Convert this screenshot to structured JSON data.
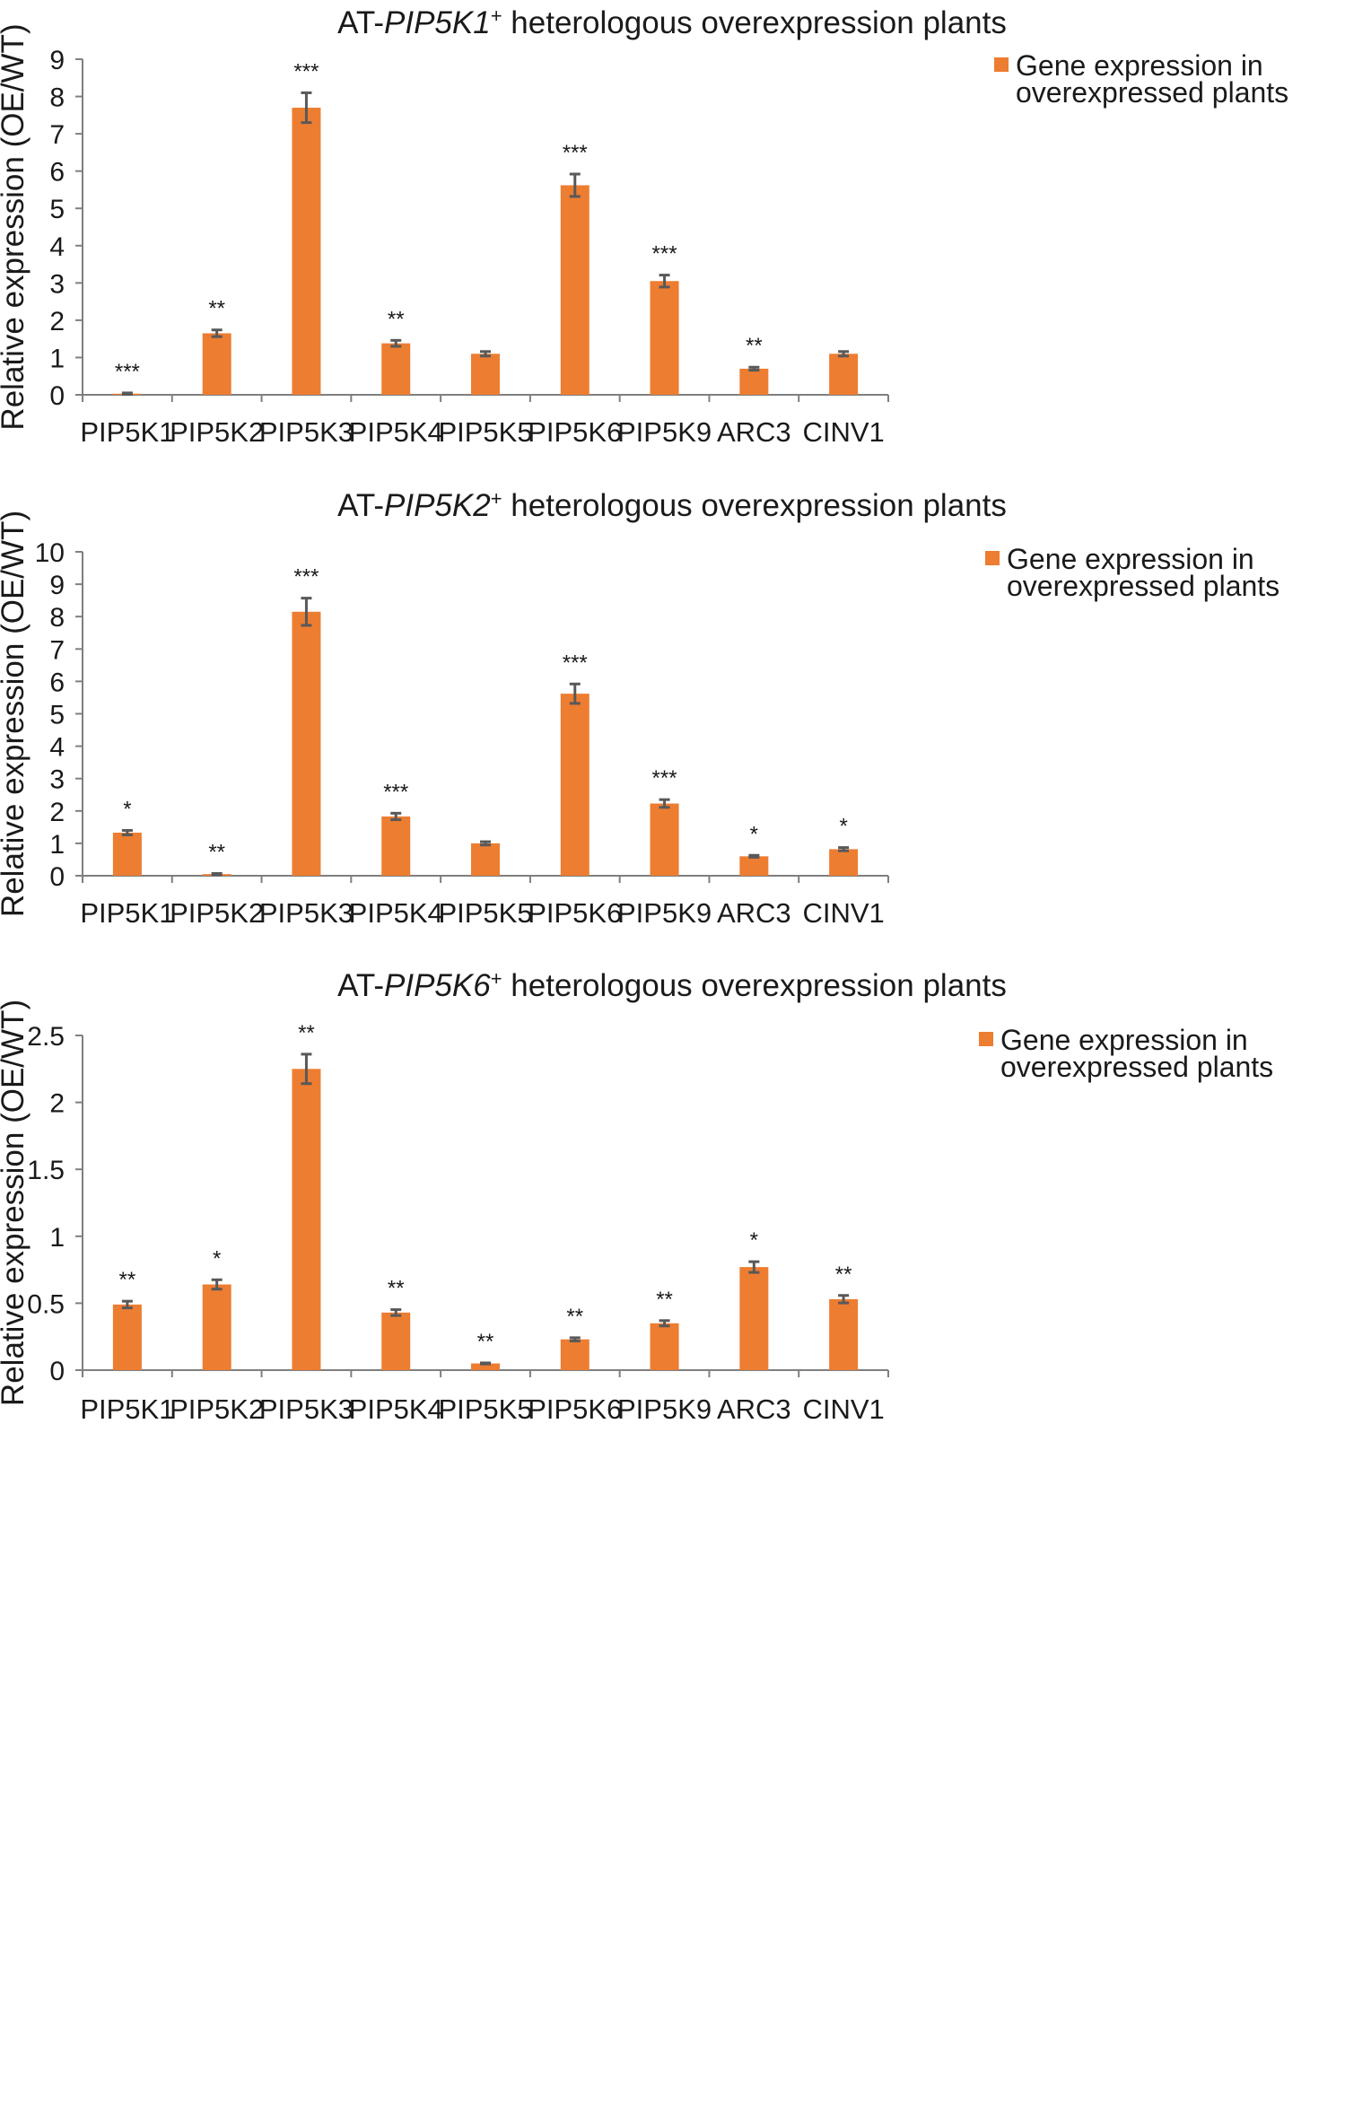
{
  "colors": {
    "bar": "#ED7D31",
    "axis": "#7F7F7F",
    "error_bar": "#595959",
    "text": "#1A1A1A"
  },
  "chart_data": [
    {
      "type": "bar",
      "title_prefix": "AT-",
      "title_gene": "PIP5K1",
      "title_sup": "+",
      "title_suffix": " heterologous overexpression plants",
      "ylabel": "Relative expression (OE/WT)",
      "xlabel": "",
      "ylim": [
        0,
        9
      ],
      "yticks": [
        "0",
        "1",
        "2",
        "3",
        "4",
        "5",
        "6",
        "7",
        "8",
        "9"
      ],
      "ytick_values": [
        0,
        1,
        2,
        3,
        4,
        5,
        6,
        7,
        8,
        9
      ],
      "legend": [
        "Gene expression in",
        "overexpressed plants"
      ],
      "legend_position": "top-right",
      "categories": [
        "PIP5K1",
        "PIP5K2",
        "PIP5K3",
        "PIP5K4",
        "PIP5K5",
        "PIP5K6",
        "PIP5K9",
        "ARC3",
        "CINV1"
      ],
      "values": [
        0.03,
        1.65,
        7.7,
        1.38,
        1.1,
        5.62,
        3.05,
        0.7,
        1.1
      ],
      "errors": [
        0.02,
        0.09,
        0.4,
        0.08,
        0.06,
        0.3,
        0.16,
        0.04,
        0.06
      ],
      "significance": [
        "***",
        "**",
        "***",
        "**",
        "",
        "***",
        "***",
        "**",
        ""
      ]
    },
    {
      "type": "bar",
      "title_prefix": "AT-",
      "title_gene": "PIP5K2",
      "title_sup": "+",
      "title_suffix": " heterologous overexpression plants",
      "ylabel": "Relative expression (OE/WT)",
      "xlabel": "",
      "ylim": [
        0,
        10
      ],
      "yticks": [
        "0",
        "1",
        "2",
        "3",
        "4",
        "5",
        "6",
        "7",
        "8",
        "9",
        "10"
      ],
      "ytick_values": [
        0,
        1,
        2,
        3,
        4,
        5,
        6,
        7,
        8,
        9,
        10
      ],
      "legend": [
        "Gene expression in",
        "overexpressed plants"
      ],
      "legend_position": "top-right",
      "categories": [
        "PIP5K1",
        "PIP5K2",
        "PIP5K3",
        "PIP5K4",
        "PIP5K5",
        "PIP5K6",
        "PIP5K9",
        "ARC3",
        "CINV1"
      ],
      "values": [
        1.33,
        0.05,
        8.15,
        1.83,
        1.0,
        5.62,
        2.23,
        0.6,
        0.82
      ],
      "errors": [
        0.07,
        0.02,
        0.42,
        0.1,
        0.05,
        0.3,
        0.12,
        0.03,
        0.05
      ],
      "significance": [
        "*",
        "**",
        "***",
        "***",
        "",
        "***",
        "***",
        "*",
        "*"
      ]
    },
    {
      "type": "bar",
      "title_prefix": "AT-",
      "title_gene": "PIP5K6",
      "title_sup": "+",
      "title_suffix": " heterologous overexpression plants",
      "ylabel": "Relative expression (OE/WT)",
      "xlabel": "",
      "ylim": [
        0,
        2.5
      ],
      "yticks": [
        "0",
        "0.5",
        "1",
        "1.5",
        "2",
        "2.5"
      ],
      "ytick_values": [
        0,
        0.5,
        1,
        1.5,
        2,
        2.5
      ],
      "legend": [
        "Gene expression in",
        "overexpressed plants"
      ],
      "legend_position": "top-right",
      "categories": [
        "PIP5K1",
        "PIP5K2",
        "PIP5K3",
        "PIP5K4",
        "PIP5K5",
        "PIP5K6",
        "PIP5K9",
        "ARC3",
        "CINV1"
      ],
      "values": [
        0.49,
        0.64,
        2.25,
        0.43,
        0.05,
        0.23,
        0.35,
        0.77,
        0.53
      ],
      "errors": [
        0.025,
        0.035,
        0.11,
        0.022,
        0.004,
        0.012,
        0.02,
        0.04,
        0.028
      ],
      "significance": [
        "**",
        "*",
        "**",
        "**",
        "**",
        "**",
        "**",
        "*",
        "**"
      ]
    }
  ]
}
